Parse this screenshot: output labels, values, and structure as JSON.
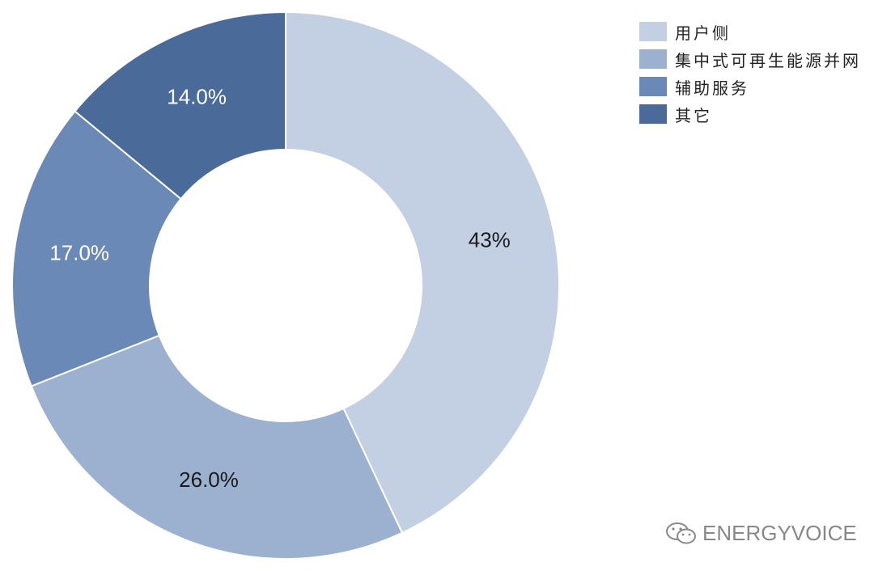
{
  "chart_data": {
    "type": "pie",
    "donut": true,
    "start_angle": "top",
    "direction": "clockwise",
    "legend_position": "top-right",
    "slices": [
      {
        "name": "用户侧",
        "value": 43,
        "label": "43%",
        "color": "#c3cfe2",
        "label_color": "#1a1a1a"
      },
      {
        "name": "集中式可再生能源并网",
        "value": 26,
        "label": "26.0%",
        "color": "#9cb0d0",
        "label_color": "#1a1a1a"
      },
      {
        "name": "辅助服务",
        "value": 17,
        "label": "17.0%",
        "color": "#6b89b6",
        "label_color": "#ffffff"
      },
      {
        "name": "其它",
        "value": 14,
        "label": "14.0%",
        "color": "#4a6a9a",
        "label_color": "#ffffff"
      }
    ]
  },
  "watermark": {
    "text": "ENERGYVOICE",
    "icon": "wechat-icon"
  }
}
